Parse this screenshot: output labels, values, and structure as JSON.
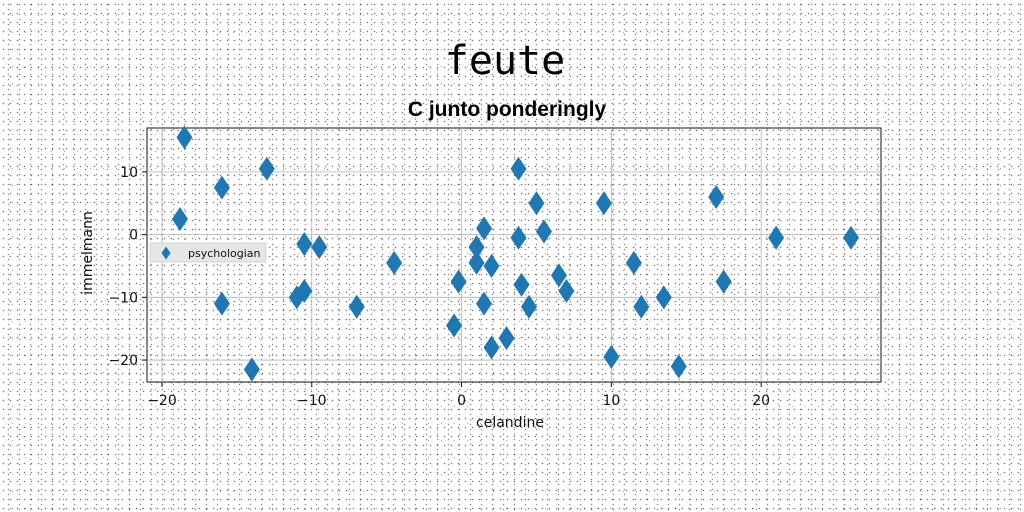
{
  "chart_data": {
    "type": "scatter",
    "title": "feute",
    "subtitle": "C junto ponderingly",
    "xlabel": "celandine",
    "ylabel": "immelmann",
    "xlim": [
      -21,
      28
    ],
    "ylim": [
      -23.5,
      17
    ],
    "xticks": [
      -20,
      -10,
      0,
      10,
      20
    ],
    "yticks": [
      -20,
      -10,
      0,
      10
    ],
    "xtick_labels": [
      "−20",
      "−10",
      "0",
      "10",
      "20"
    ],
    "ytick_labels": [
      "−20",
      "−10",
      "0",
      "10"
    ],
    "grid": true,
    "legend_position": "center-left",
    "marker": "diamond",
    "marker_color": "#1f77b4",
    "series": [
      {
        "name": "psychologian",
        "x": [
          -18.5,
          -18.8,
          -16,
          -16,
          -13,
          -14,
          -11,
          -10.5,
          -10.5,
          -9.5,
          -7,
          -4.5,
          -0.5,
          -0.2,
          1,
          1,
          1.5,
          1.5,
          2,
          2,
          3,
          3.8,
          3.8,
          4,
          4.5,
          5,
          5.5,
          6.5,
          7,
          9.5,
          10,
          11.5,
          12,
          13.5,
          14.5,
          17,
          17.5,
          21,
          26
        ],
        "y": [
          15.5,
          2.5,
          7.5,
          -11,
          10.5,
          -21.5,
          -10,
          -1.5,
          -9,
          -2,
          -11.5,
          -4.5,
          -14.5,
          -7.5,
          -2,
          -4.5,
          -11,
          1,
          -5,
          -18,
          -16.5,
          10.5,
          -0.5,
          -8,
          -11.5,
          5,
          0.5,
          -6.5,
          -9,
          5,
          -19.5,
          -4.5,
          -11.5,
          -10,
          -21,
          6,
          -7.5,
          -0.5,
          -0.5
        ]
      }
    ]
  }
}
